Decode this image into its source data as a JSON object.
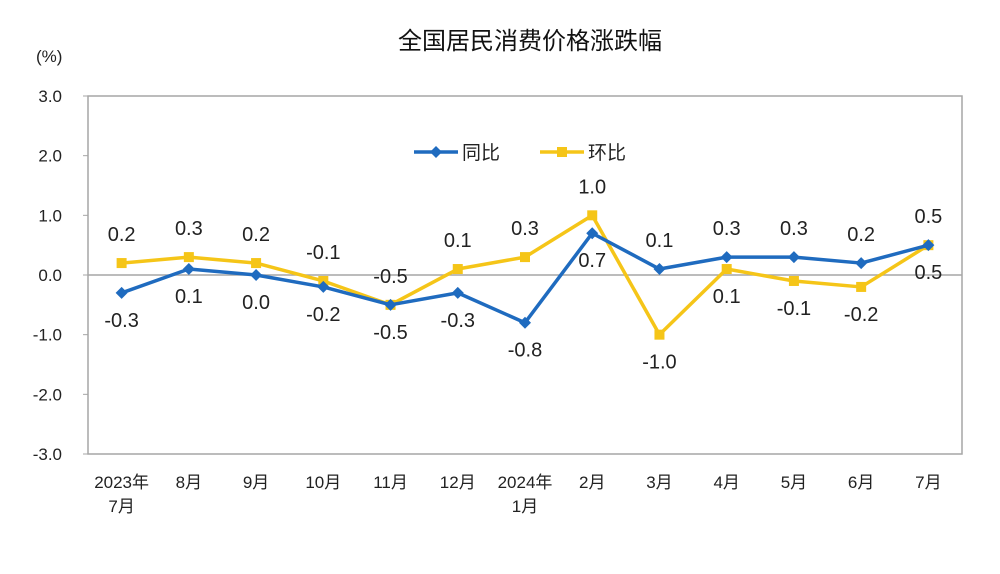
{
  "chart_data": {
    "type": "line",
    "title": "全国居民消费价格涨跌幅",
    "ylabel": "(%)",
    "ylim": [
      -3.0,
      3.0
    ],
    "yticks": [
      "3.0",
      "2.0",
      "1.0",
      "0.0",
      "-1.0",
      "-2.0",
      "-3.0"
    ],
    "ytick_values": [
      3,
      2,
      1,
      0,
      -1,
      -2,
      -3
    ],
    "categories": [
      [
        "2023年",
        "7月"
      ],
      [
        "8月"
      ],
      [
        "9月"
      ],
      [
        "10月"
      ],
      [
        "11月"
      ],
      [
        "12月"
      ],
      [
        "2024年",
        "1月"
      ],
      [
        "2月"
      ],
      [
        "3月"
      ],
      [
        "4月"
      ],
      [
        "5月"
      ],
      [
        "6月"
      ],
      [
        "7月"
      ]
    ],
    "legend_position": "top-center",
    "grid": false,
    "series": [
      {
        "name": "同比",
        "color": "#1F6BBF",
        "marker": "diamond",
        "values": [
          -0.3,
          0.1,
          0.0,
          -0.2,
          -0.5,
          -0.3,
          -0.8,
          0.7,
          0.1,
          0.3,
          0.3,
          0.2,
          0.5
        ]
      },
      {
        "name": "环比",
        "color": "#F5C518",
        "marker": "square",
        "values": [
          0.2,
          0.3,
          0.2,
          -0.1,
          -0.5,
          0.1,
          0.3,
          1.0,
          -1.0,
          0.1,
          -0.1,
          -0.2,
          0.5
        ]
      }
    ]
  }
}
